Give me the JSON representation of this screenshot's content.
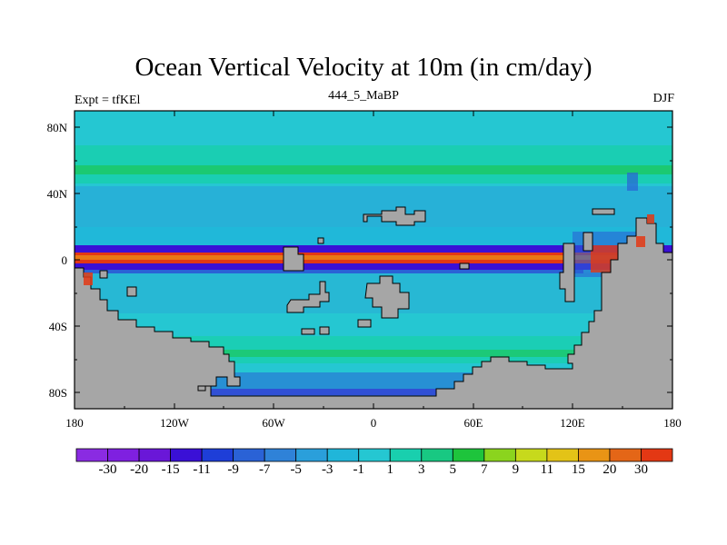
{
  "title": "Ocean Vertical Velocity at 10m (in cm/day)",
  "left_string": "Expt = tfKEl",
  "center_string": "444_5_MaBP",
  "right_string": "DJF",
  "lat_ticks": [
    "80N",
    "40N",
    "0",
    "40S",
    "80S"
  ],
  "lon_ticks": [
    "180",
    "120W",
    "60W",
    "0",
    "60E",
    "120E",
    "180"
  ],
  "colorbar": {
    "labels": [
      "-30",
      "-20",
      "-15",
      "-11",
      "-9",
      "-7",
      "-5",
      "-3",
      "-1",
      "1",
      "3",
      "5",
      "7",
      "9",
      "11",
      "15",
      "20",
      "30"
    ],
    "colors": [
      "#8a2be2",
      "#7f20e0",
      "#6a17d8",
      "#3a10d6",
      "#1e3ed8",
      "#2a62d6",
      "#2f82d8",
      "#2a9fdb",
      "#20b6d9",
      "#25c7d2",
      "#19cfae",
      "#18c882",
      "#1ec43c",
      "#8bd41e",
      "#c7d91c",
      "#e3c317",
      "#e99415",
      "#e46617",
      "#e33814"
    ],
    "land_color": "#a6a6a6"
  },
  "lat_range": [
    -90,
    90
  ],
  "lon_range": [
    -180,
    180
  ]
}
